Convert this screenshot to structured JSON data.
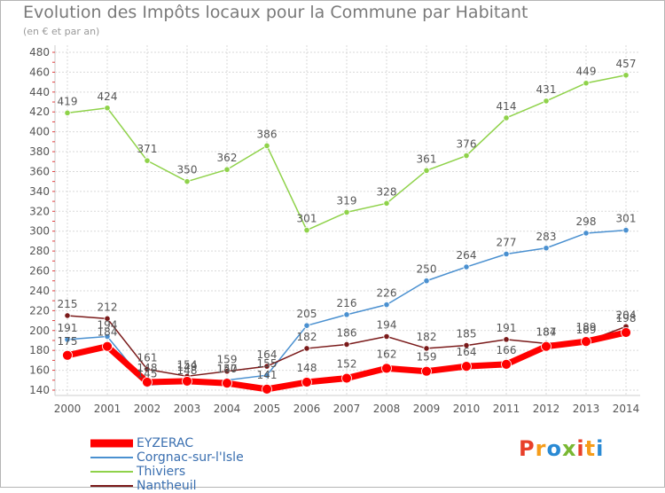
{
  "header": {
    "title": "Evolution des Impôts locaux pour la Commune par Habitant",
    "subtitle": "(en € et par an)"
  },
  "logo": {
    "text": "Proxiti",
    "colors": [
      "#e8402a",
      "#f59c1a",
      "#2a8ad4",
      "#79b833"
    ]
  },
  "chart_data": {
    "type": "line",
    "title": "Evolution des Impôts locaux pour la Commune par Habitant",
    "subtitle": "(en € et par an)",
    "xlabel": "",
    "ylabel": "",
    "ylim": [
      140,
      480
    ],
    "yticks": [
      "140",
      "160",
      "180",
      "200",
      "220",
      "240",
      "260",
      "280",
      "300",
      "320",
      "340",
      "360",
      "380",
      "400",
      "420",
      "440",
      "460",
      "480"
    ],
    "grid": true,
    "legend_position": "bottom-left",
    "categories": [
      "2000",
      "2001",
      "2002",
      "2003",
      "2004",
      "2005",
      "2006",
      "2007",
      "2008",
      "2009",
      "2010",
      "2011",
      "2012",
      "2013",
      "2014"
    ],
    "series": [
      {
        "name": "Thiviers",
        "color": "#8fd24a",
        "values": [
          419,
          424,
          371,
          350,
          362,
          386,
          301,
          319,
          328,
          361,
          376,
          414,
          431,
          449,
          457
        ]
      },
      {
        "name": "Corgnac-sur-l'Isle",
        "color": "#4a90d0",
        "values": [
          191,
          194,
          145,
          148,
          150,
          155,
          205,
          216,
          226,
          250,
          264,
          277,
          283,
          298,
          301
        ]
      },
      {
        "name": "Nantheuil",
        "color": "#7a1a1a",
        "values": [
          215,
          212,
          161,
          154,
          159,
          164,
          182,
          186,
          194,
          182,
          185,
          191,
          187,
          189,
          204
        ]
      },
      {
        "name": "EYZERAC",
        "color": "#ff0000",
        "values": [
          175,
          184,
          148,
          149,
          147,
          141,
          148,
          152,
          162,
          159,
          164,
          166,
          184,
          189,
          198
        ]
      }
    ],
    "point_labels": [
      {
        "series": "Thiviers",
        "labels": [
          "419",
          "424",
          "371",
          "350",
          "362",
          "386",
          "301",
          "319",
          "328",
          "361",
          "376",
          "414",
          "431",
          "449",
          "457"
        ]
      },
      {
        "series": "Corgnac-sur-l'Isle",
        "labels": [
          "191",
          "194",
          "145",
          "148",
          "150",
          "155",
          "205",
          "216",
          "226",
          "250",
          "264",
          "277",
          "283",
          "298",
          "301"
        ]
      },
      {
        "series": "Nantheuil",
        "labels": [
          "215",
          "212",
          "161",
          "154",
          "159",
          "164",
          "182",
          "186",
          "194",
          "182",
          "185",
          "191",
          "187",
          "189",
          "204"
        ]
      },
      {
        "series": "EYZERAC",
        "labels": [
          "175",
          "184",
          "148",
          "149",
          "147",
          "141",
          "148",
          "152",
          "162",
          "159",
          "164",
          "166",
          "184",
          "189",
          "198"
        ]
      }
    ]
  }
}
